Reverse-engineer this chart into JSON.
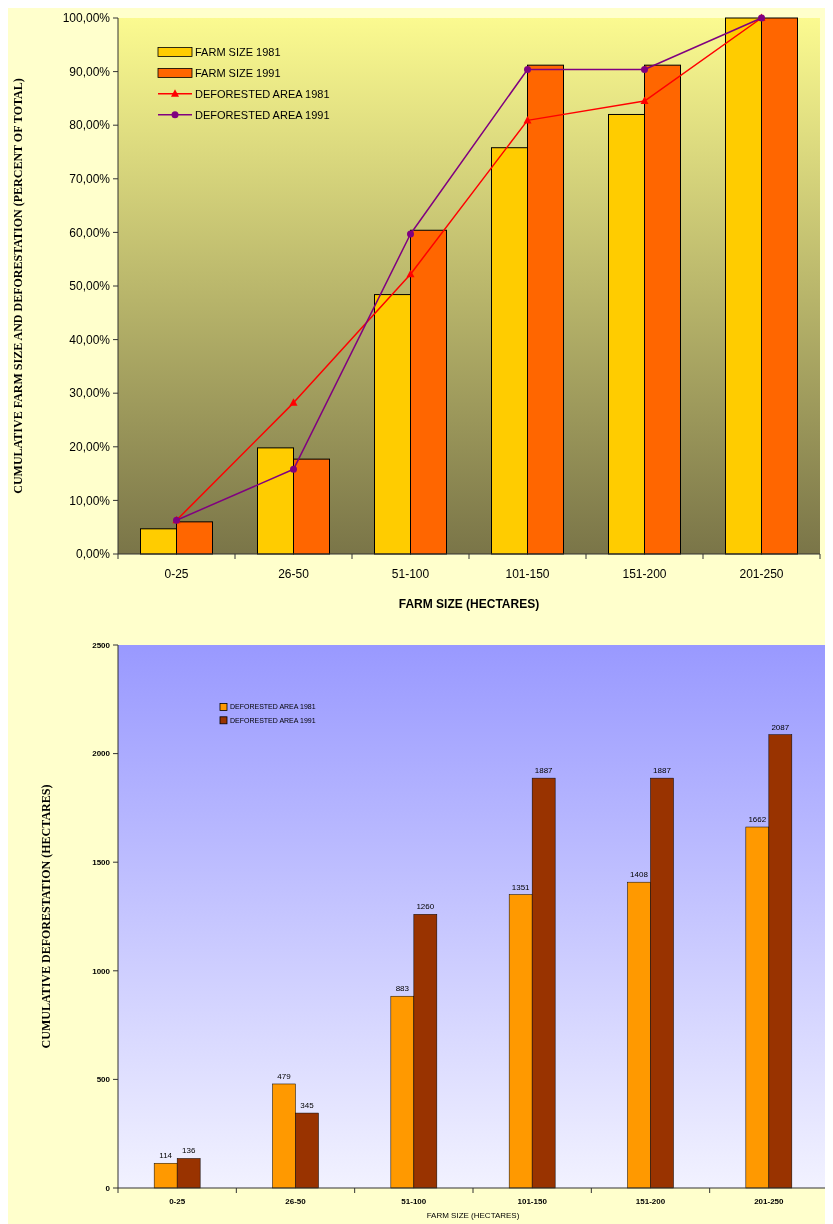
{
  "chart_data": [
    {
      "type": "bar",
      "xlabel": "FARM SIZE (HECTARES)",
      "ylabel": "CUMULATIVE FARM SIZE AND DEFORESTATION (PERCENT OF TOTAL)",
      "categories": [
        "0-25",
        "26-50",
        "51-100",
        "101-150",
        "151-200",
        "201-250"
      ],
      "ylim": [
        0,
        100
      ],
      "yticks": [
        {
          "value": 0,
          "label": "0,00%"
        },
        {
          "value": 10,
          "label": "10,00%"
        },
        {
          "value": 20,
          "label": "20,00%"
        },
        {
          "value": 30,
          "label": "30,00%"
        },
        {
          "value": 40,
          "label": "40,00%"
        },
        {
          "value": 50,
          "label": "50,00%"
        },
        {
          "value": 60,
          "label": "60,00%"
        },
        {
          "value": 70,
          "label": "70,00%"
        },
        {
          "value": 80,
          "label": "80,00%"
        },
        {
          "value": 90,
          "label": "90,00%"
        },
        {
          "value": 100,
          "label": "100,00%"
        }
      ],
      "legend": "top left",
      "grid": false,
      "series": [
        {
          "name": "FARM SIZE 1981",
          "color": "#ffcc00",
          "values": [
            4.7,
            19.8,
            48.4,
            75.8,
            82.0,
            100
          ]
        },
        {
          "name": "FARM SIZE 1991",
          "color": "#ff6600",
          "values": [
            6.0,
            17.7,
            60.4,
            91.2,
            91.2,
            100
          ]
        },
        {
          "name": "DEFORESTED AREA 1981",
          "type": "line",
          "marker": "triangle",
          "color": "#ff0000",
          "values": [
            6.3,
            28.2,
            52.2,
            80.9,
            84.5,
            100
          ]
        },
        {
          "name": "DEFORESTED AREA 1991",
          "type": "line",
          "marker": "circle",
          "color": "#800080",
          "values": [
            6.3,
            15.8,
            59.7,
            90.4,
            90.4,
            100
          ]
        }
      ]
    },
    {
      "type": "bar",
      "xlabel": "FARM SIZE (HECTARES)",
      "ylabel": "CUMULATIVE DEFORESTATION (HECTARES)",
      "categories": [
        "0-25",
        "26-50",
        "51-100",
        "101-150",
        "151-200",
        "201-250"
      ],
      "ylim": [
        0,
        2500
      ],
      "yticks": [
        0,
        500,
        1000,
        1500,
        2000,
        2500
      ],
      "legend": "top left",
      "grid": false,
      "data_labels": true,
      "series": [
        {
          "name": "DEFORESTED AREA 1981",
          "color": "#ff9900",
          "values": [
            114,
            479,
            883,
            1351,
            1408,
            1662
          ]
        },
        {
          "name": "DEFORESTED AREA 1991",
          "color": "#993300",
          "values": [
            136,
            345,
            1260,
            1887,
            1887,
            2087
          ]
        }
      ]
    }
  ]
}
